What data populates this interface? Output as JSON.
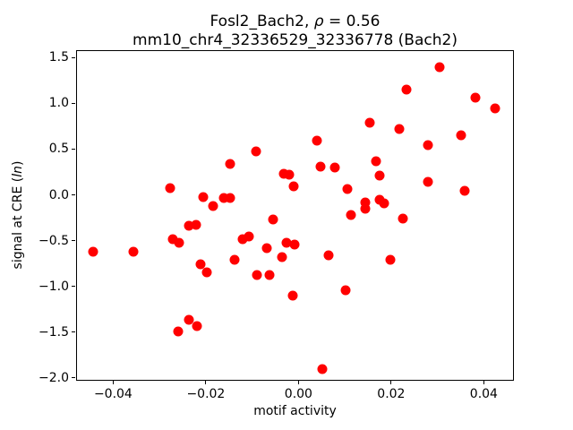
{
  "figure": {
    "title": {
      "prefix": "Fosl2_Bach2, ",
      "rho": "ρ",
      "suffix": " = 0.56"
    },
    "subtitle": "mm10_chr4_32336529_32336778 (Bach2)",
    "xlabel": "motif activity",
    "ylabel": {
      "prefix": "signal at CRE (",
      "italic": "ln",
      "suffix": ")"
    }
  },
  "chart_data": {
    "type": "scatter",
    "title": "Fosl2_Bach2, ρ = 0.56",
    "subtitle": "mm10_chr4_32336529_32336778 (Bach2)",
    "xlabel": "motif activity",
    "ylabel": "signal at CRE (ln)",
    "legend": "none",
    "grid": false,
    "marker": "circle",
    "marker_color": "#ff0000",
    "marker_diameter_px": 11,
    "xlim": [
      -0.048,
      0.0465
    ],
    "ylim": [
      -2.03,
      1.58
    ],
    "xticks": {
      "values": [
        -0.04,
        -0.02,
        0.0,
        0.02,
        0.04
      ],
      "labels": [
        "−0.04",
        "−0.02",
        "0.00",
        "0.02",
        "0.04"
      ]
    },
    "yticks": {
      "values": [
        1.5,
        1.0,
        0.5,
        0.0,
        -0.5,
        -1.0,
        -1.5,
        -2.0
      ],
      "labels": [
        "1.5",
        "1.0",
        "0.5",
        "0.0",
        "−0.5",
        "−1.0",
        "−1.5",
        "−2.0"
      ]
    },
    "points": [
      [
        0.0303,
        1.4
      ],
      [
        0.0231,
        1.16
      ],
      [
        0.0379,
        1.07
      ],
      [
        0.0423,
        0.95
      ],
      [
        0.0151,
        0.8
      ],
      [
        0.0216,
        0.73
      ],
      [
        0.0348,
        0.66
      ],
      [
        0.0038,
        0.6
      ],
      [
        0.0277,
        0.55
      ],
      [
        0.0166,
        0.38
      ],
      [
        0.0045,
        0.32
      ],
      [
        0.0077,
        0.31
      ],
      [
        0.0173,
        0.22
      ],
      [
        0.0277,
        0.15
      ],
      [
        0.0103,
        0.07
      ],
      [
        0.0356,
        0.05
      ],
      [
        0.0173,
        -0.04
      ],
      [
        0.0142,
        -0.07
      ],
      [
        0.0182,
        -0.08
      ],
      [
        0.0142,
        -0.14
      ],
      [
        0.0111,
        -0.21
      ],
      [
        0.0224,
        -0.25
      ],
      [
        -0.0094,
        0.48
      ],
      [
        -0.015,
        0.35
      ],
      [
        -0.0034,
        0.24
      ],
      [
        -0.0023,
        0.23
      ],
      [
        -0.0013,
        0.1
      ],
      [
        -0.0279,
        0.08
      ],
      [
        -0.0207,
        -0.01
      ],
      [
        -0.0163,
        -0.02
      ],
      [
        -0.0149,
        -0.02
      ],
      [
        -0.0186,
        -0.11
      ],
      [
        -0.0057,
        -0.26
      ],
      [
        -0.0238,
        -0.33
      ],
      [
        -0.0223,
        -0.32
      ],
      [
        -0.0273,
        -0.47
      ],
      [
        -0.0259,
        -0.51
      ],
      [
        -0.0123,
        -0.47
      ],
      [
        -0.0109,
        -0.44
      ],
      [
        -0.0028,
        -0.51
      ],
      [
        -0.0011,
        -0.53
      ],
      [
        -0.007,
        -0.57
      ],
      [
        -0.0038,
        -0.67
      ],
      [
        -0.014,
        -0.7
      ],
      [
        -0.0213,
        -0.75
      ],
      [
        -0.0199,
        -0.84
      ],
      [
        -0.0091,
        -0.87
      ],
      [
        -0.0065,
        -0.87
      ],
      [
        -0.0015,
        -1.09
      ],
      [
        -0.0446,
        -0.61
      ],
      [
        -0.0359,
        -0.61
      ],
      [
        -0.0239,
        -1.35
      ],
      [
        -0.0221,
        -1.42
      ],
      [
        -0.0262,
        -1.48
      ],
      [
        0.0063,
        -0.65
      ],
      [
        0.0197,
        -0.7
      ],
      [
        0.01,
        -1.03
      ],
      [
        0.0049,
        -1.89
      ]
    ]
  }
}
